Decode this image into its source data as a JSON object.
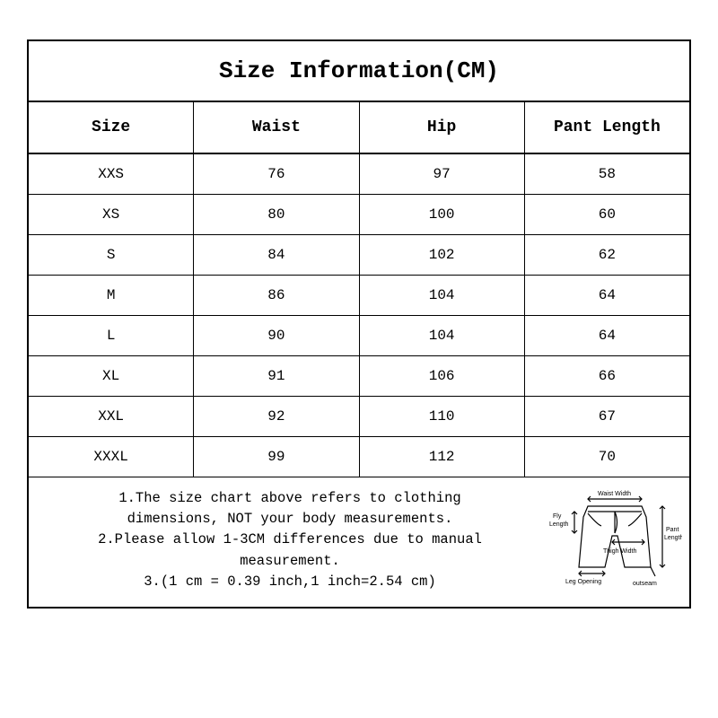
{
  "title": "Size Information(CM)",
  "columns": [
    "Size",
    "Waist",
    "Hip",
    "Pant Length"
  ],
  "rows": [
    [
      "XXS",
      "76",
      "97",
      "58"
    ],
    [
      "XS",
      "80",
      "100",
      "60"
    ],
    [
      "S",
      "84",
      "102",
      "62"
    ],
    [
      "M",
      "86",
      "104",
      "64"
    ],
    [
      "L",
      "90",
      "104",
      "64"
    ],
    [
      "XL",
      "91",
      "106",
      "66"
    ],
    [
      "XXL",
      "92",
      "110",
      "67"
    ],
    [
      "XXXL",
      "99",
      "112",
      "70"
    ]
  ],
  "notes": [
    "1.The size chart above refers to clothing",
    "dimensions, NOT your body measurements.",
    "2.Please allow 1-3CM differences due to manual",
    "measurement.",
    "3.(1 cm = 0.39 inch,1 inch=2.54 cm)"
  ],
  "diagram_labels": {
    "waist_width": "Waist Width",
    "fly_length": "Fly\nLength",
    "pant_length": "Pant\nLength",
    "thigh_width": "Thigh Width",
    "leg_opening": "Leg Opening",
    "outseam": "outseam"
  },
  "colors": {
    "border": "#000000",
    "text": "#000000",
    "background": "#ffffff"
  }
}
